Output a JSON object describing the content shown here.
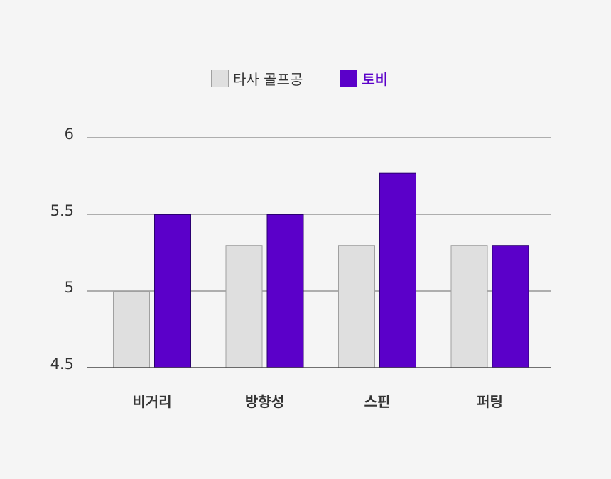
{
  "chart_data": {
    "type": "bar",
    "categories": [
      "비거리",
      "방향성",
      "스핀",
      "퍼팅"
    ],
    "series": [
      {
        "name": "타사 골프공",
        "values": [
          5.0,
          5.3,
          5.3,
          5.3
        ],
        "color": "#dfdfdf",
        "stroke": "#a0a0a0",
        "label_color": "#333333"
      },
      {
        "name": "토비",
        "values": [
          5.5,
          5.5,
          5.77,
          5.3
        ],
        "color": "#5b00c9",
        "stroke": "#2a0070",
        "label_color": "#5b00c9"
      }
    ],
    "yticks": [
      "4.5",
      "5",
      "5.5",
      "6"
    ],
    "ytick_values": [
      4.5,
      5,
      5.5,
      6
    ],
    "ylim": [
      4.5,
      6
    ],
    "grid": true,
    "legend_position": "top-center",
    "title": "",
    "xlabel": "",
    "ylabel": ""
  }
}
